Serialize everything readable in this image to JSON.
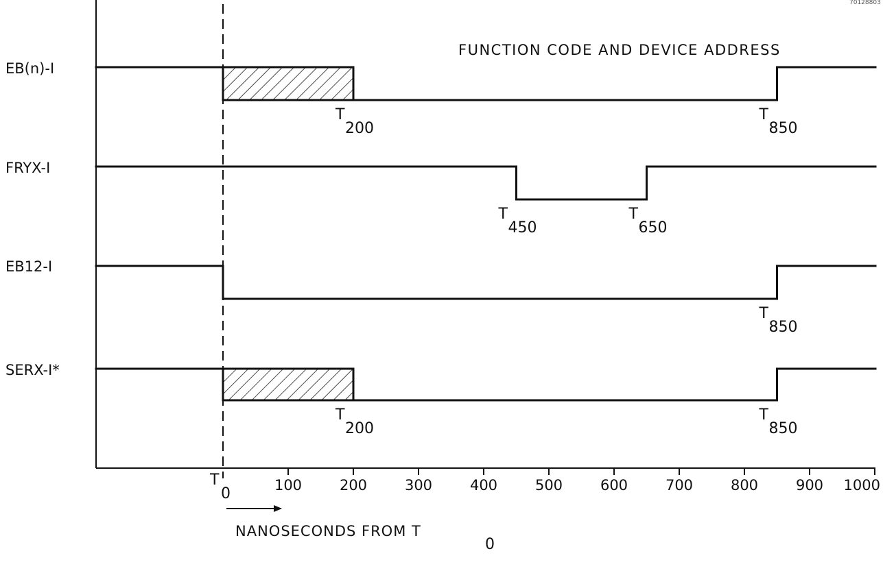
{
  "corner_code": "70128803",
  "header_text": "FUNCTION CODE AND DEVICE ADDRESS",
  "axis": {
    "ticks": [
      {
        "value": 100,
        "label": "100"
      },
      {
        "value": 200,
        "label": "200"
      },
      {
        "value": 300,
        "label": "300"
      },
      {
        "value": 400,
        "label": "400"
      },
      {
        "value": 500,
        "label": "500"
      },
      {
        "value": 600,
        "label": "600"
      },
      {
        "value": 700,
        "label": "700"
      },
      {
        "value": 800,
        "label": "800"
      },
      {
        "value": 900,
        "label": "900"
      },
      {
        "value": 1000,
        "label": "1000"
      }
    ],
    "origin_label": {
      "main": "T",
      "sub": "0"
    },
    "caption": {
      "main": "NANOSECONDS FROM T",
      "sub": "0"
    }
  },
  "signals": [
    {
      "name": "EB(n)-I",
      "low_segments": [
        [
          0,
          850
        ]
      ],
      "hatched": [
        0,
        200
      ],
      "marks": [
        {
          "time": 200,
          "main": "T",
          "sub": "200"
        },
        {
          "time": 850,
          "main": "T",
          "sub": "850"
        }
      ]
    },
    {
      "name": "FRYX-I",
      "low_segments": [
        [
          450,
          650
        ]
      ],
      "hatched": null,
      "marks": [
        {
          "time": 450,
          "main": "T",
          "sub": "450"
        },
        {
          "time": 650,
          "main": "T",
          "sub": "650"
        }
      ]
    },
    {
      "name": "EB12-I",
      "low_segments": [
        [
          0,
          850
        ]
      ],
      "hatched": null,
      "marks": [
        {
          "time": 850,
          "main": "T",
          "sub": "850"
        }
      ]
    },
    {
      "name": "SERX-I*",
      "low_segments": [
        [
          0,
          850
        ]
      ],
      "hatched": [
        0,
        200
      ],
      "marks": [
        {
          "time": 200,
          "main": "T",
          "sub": "200"
        },
        {
          "time": 850,
          "main": "T",
          "sub": "850"
        }
      ]
    }
  ]
}
